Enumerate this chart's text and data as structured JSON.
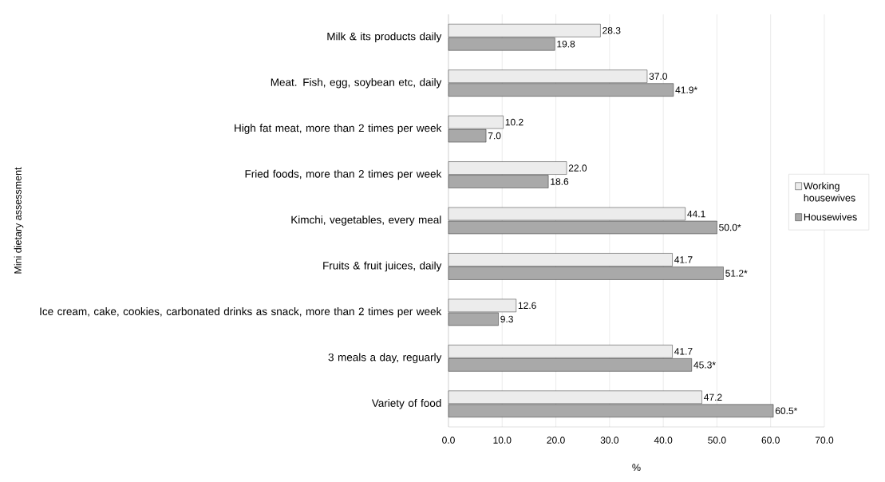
{
  "chart_data": {
    "type": "bar",
    "orientation": "horizontal",
    "ylabel": "Mini dietary assessment",
    "xlabel": "%",
    "categories": [
      "Milk & its products daily",
      "Meat. Fish, egg, soybean etc, daily",
      "High fat meat, more than 2 times per week",
      "Fried foods, more than 2 times per week",
      "Kimchi, vegetables, every meal",
      "Fruits & fruit juices, daily",
      "Ice cream, cake, cookies, carbonated drinks as snack, more than 2 times per week",
      "3 meals a day, reguarly",
      "Variety of food"
    ],
    "series": [
      {
        "name": "Working housewives",
        "color": "#ececec",
        "values": [
          28.3,
          37.0,
          10.2,
          22.0,
          44.1,
          41.7,
          12.6,
          41.7,
          47.2
        ],
        "value_labels": [
          "28.3",
          "37.0",
          "10.2",
          "22.0",
          "44.1",
          "41.7",
          "12.6",
          "41.7",
          "47.2"
        ]
      },
      {
        "name": "Housewives",
        "color": "#a9a9a9",
        "values": [
          19.8,
          41.9,
          7.0,
          18.6,
          50.0,
          51.2,
          9.3,
          45.3,
          60.5
        ],
        "value_labels": [
          "19.8",
          "41.9*",
          "7.0",
          "18.6",
          "50.0*",
          "51.2*",
          "9.3",
          "45.3*",
          "60.5*"
        ]
      }
    ],
    "xlim": [
      0,
      70
    ],
    "xticks": [
      {
        "value": 0,
        "label": "0.0"
      },
      {
        "value": 10,
        "label": "10.0"
      },
      {
        "value": 20,
        "label": "20.0"
      },
      {
        "value": 30,
        "label": "30.0"
      },
      {
        "value": 40,
        "label": "40.0"
      },
      {
        "value": 50,
        "label": "50.0"
      },
      {
        "value": 60,
        "label": "60.0"
      },
      {
        "value": 70,
        "label": "70.0"
      }
    ],
    "grid": "x",
    "legend": "right"
  }
}
